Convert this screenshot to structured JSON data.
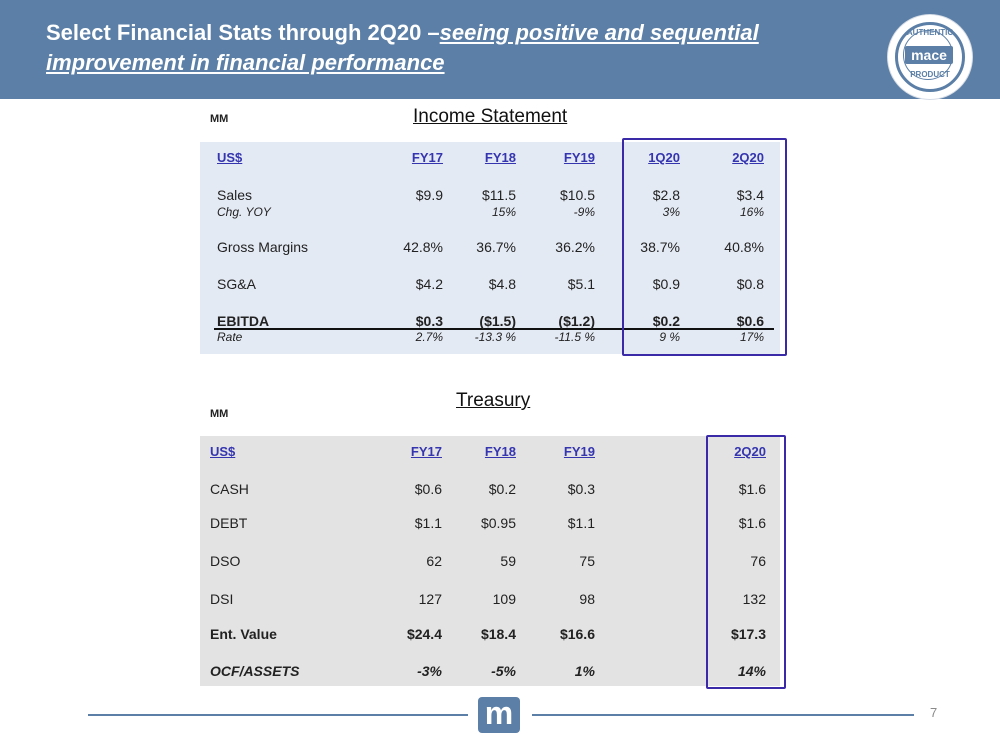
{
  "slide": {
    "title_main": "Select Financial Stats through 2Q20 –",
    "title_sub": "seeing positive and sequential improvement in financial performance",
    "page_number": "7",
    "logo_letter": "m",
    "accent_color": "#5b7fa6",
    "highlight_color": "#3a2aa8"
  },
  "seal": {
    "line1": "AUTHENTIC",
    "brand": "mace",
    "line2": "PRODUCT"
  },
  "income": {
    "unit_label": "MM",
    "title": "Income Statement",
    "currency_label": "US$",
    "columns": [
      "FY17",
      "FY18",
      "FY19",
      "1Q20",
      "2Q20"
    ],
    "rows": [
      {
        "label": "Sales",
        "values": [
          "$9.9",
          "$11.5",
          "$10.5",
          "$2.8",
          "$3.4"
        ],
        "style": "normal"
      },
      {
        "label": "Chg. YOY",
        "values": [
          "",
          "15%",
          "-9%",
          "3%",
          "16%"
        ],
        "style": "italic"
      },
      {
        "label": "Gross Margins",
        "values": [
          "42.8%",
          "36.7%",
          "36.2%",
          "38.7%",
          "40.8%"
        ],
        "style": "normal"
      },
      {
        "label": "SG&A",
        "values": [
          "$4.2",
          "$4.8",
          "$5.1",
          "$0.9",
          "$0.8"
        ],
        "style": "normal"
      },
      {
        "label": "EBITDA",
        "values": [
          "$0.3",
          "($1.5)",
          "($1.2)",
          "$0.2",
          "$0.6"
        ],
        "style": "bold"
      },
      {
        "label": "Rate",
        "values": [
          "2.7%",
          "-13.3 %",
          "-11.5 %",
          "9 %",
          "17%"
        ],
        "style": "italic"
      }
    ]
  },
  "treasury": {
    "unit_label": "MM",
    "title": "Treasury",
    "currency_label": "US$",
    "columns": [
      "FY17",
      "FY18",
      "FY19",
      "2Q20"
    ],
    "rows": [
      {
        "label": "CASH",
        "values": [
          "$0.6",
          "$0.2",
          "$0.3",
          "$1.6"
        ],
        "style": "normal"
      },
      {
        "label": "DEBT",
        "values": [
          "$1.1",
          "$0.95",
          "$1.1",
          "$1.6"
        ],
        "style": "normal"
      },
      {
        "label": "DSO",
        "values": [
          "62",
          "59",
          "75",
          "76"
        ],
        "style": "normal"
      },
      {
        "label": "DSI",
        "values": [
          "127",
          "109",
          "98",
          "132"
        ],
        "style": "normal"
      },
      {
        "label": "Ent. Value",
        "values": [
          "$24.4",
          "$18.4",
          "$16.6",
          "$17.3"
        ],
        "style": "bold"
      },
      {
        "label": "OCF/ASSETS",
        "values": [
          "-3%",
          "-5%",
          "1%",
          "14%"
        ],
        "style": "bold-italic"
      }
    ]
  }
}
